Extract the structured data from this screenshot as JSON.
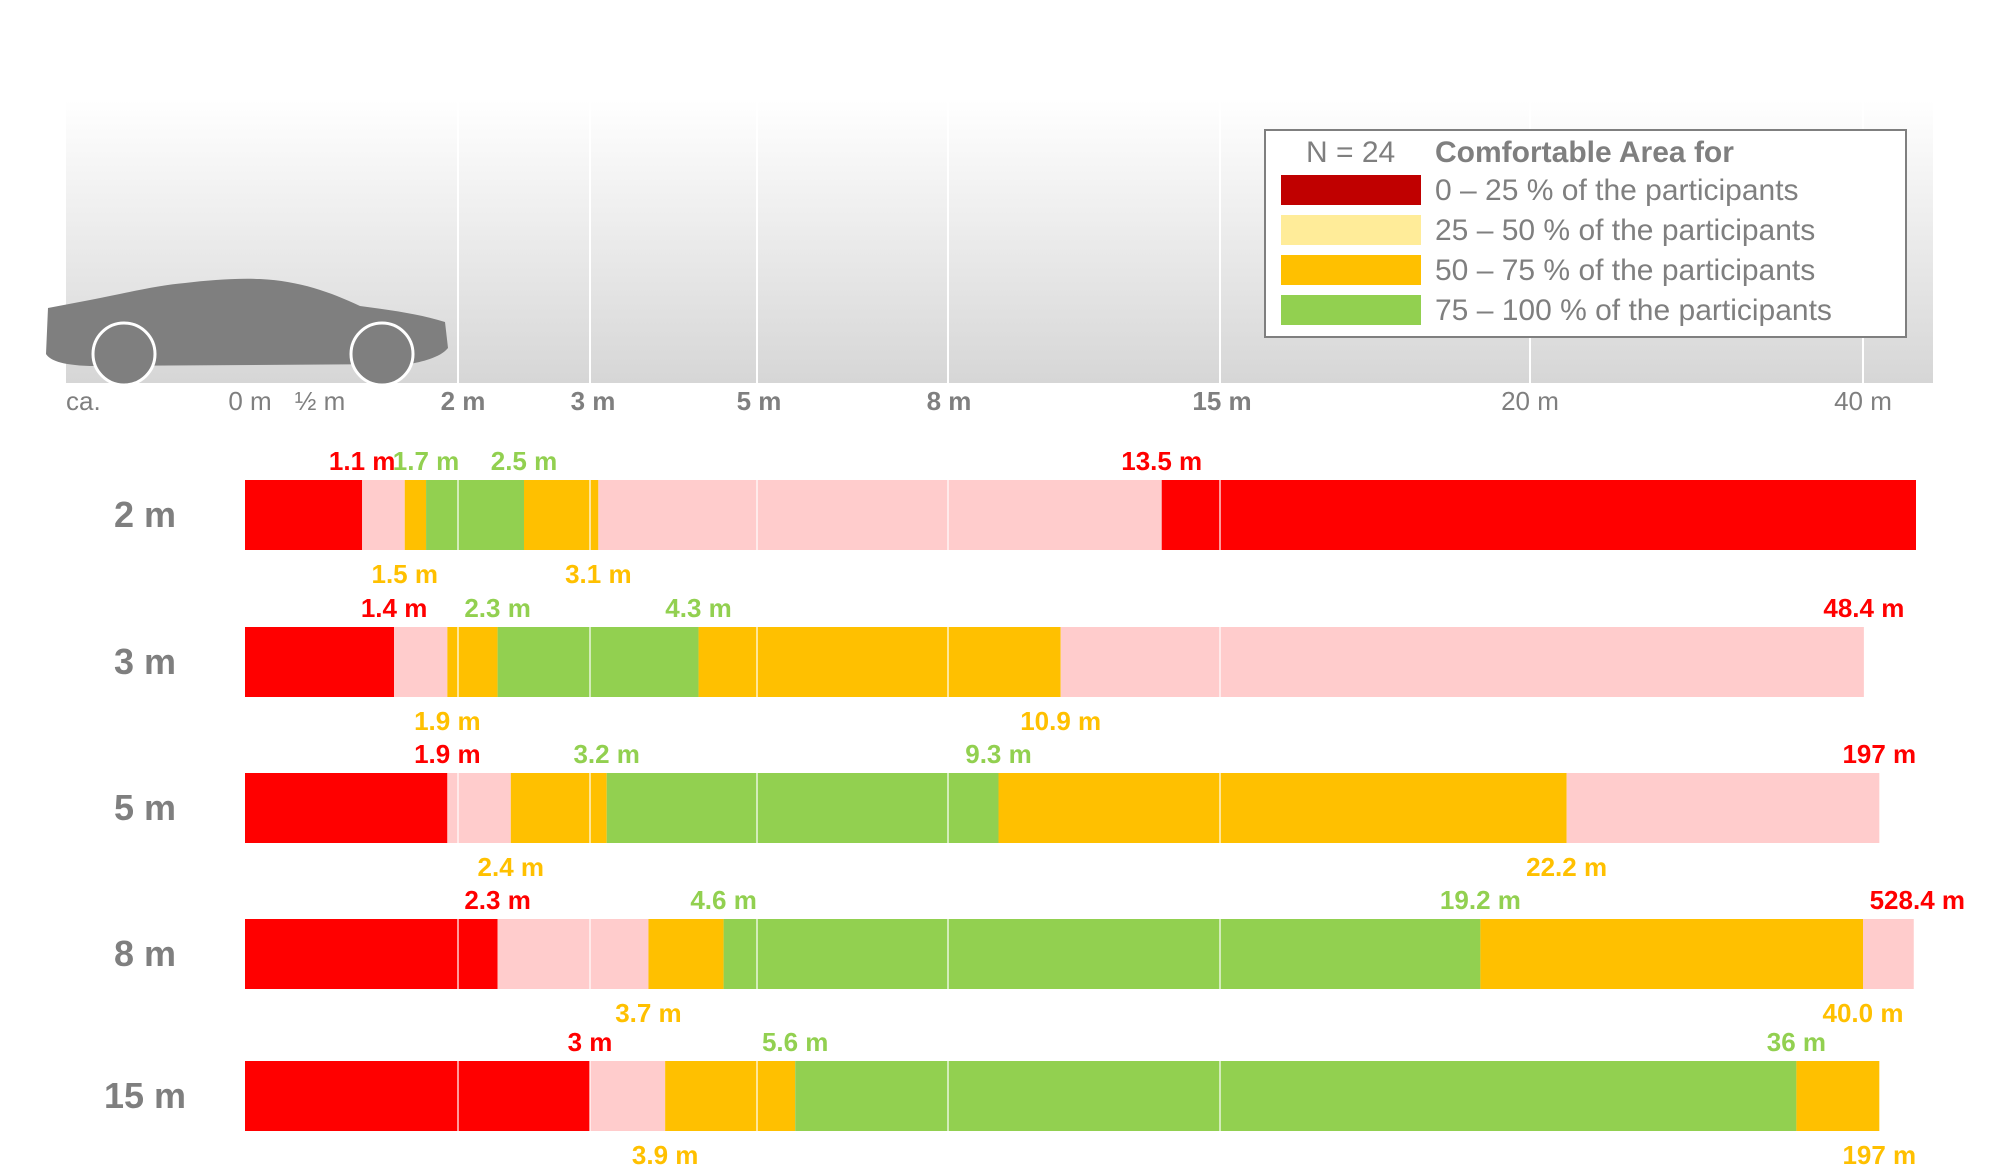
{
  "chart_data": {
    "type": "bar",
    "subtype": "stacked-horizontal-segments",
    "axis_ticks": [
      {
        "label": "ca.",
        "bold": false
      },
      {
        "label": "0 m",
        "bold": false
      },
      {
        "label": "½ m",
        "bold": false
      },
      {
        "label": "2 m",
        "bold": true
      },
      {
        "label": "3 m",
        "bold": true
      },
      {
        "label": "5 m",
        "bold": true
      },
      {
        "label": "8 m",
        "bold": true
      },
      {
        "label": "15 m",
        "bold": true
      },
      {
        "label": "20 m",
        "bold": false
      },
      {
        "label": "40 m",
        "bold": false
      }
    ],
    "legend": {
      "n_label": "N = 24",
      "title": "Comfortable Area for",
      "entries": [
        {
          "label": "0 – 25 % of the participants",
          "color": "#c00000"
        },
        {
          "label": "25 – 50 % of the participants",
          "color": "#ffec99"
        },
        {
          "label": "50 – 75 % of the participants",
          "color": "#ffc000"
        },
        {
          "label": "75 – 100 % of the participants",
          "color": "#92d050"
        }
      ]
    },
    "series_colors": {
      "red": "#ff0000",
      "pink": "#ffcccc",
      "orange": "#ffc000",
      "green": "#92d050",
      "label_red": "#ff0000",
      "label_orange": "#ffc000",
      "label_green": "#92d050"
    },
    "rows": [
      {
        "label": "2 m",
        "segments": [
          {
            "from": 0,
            "to": 1.1,
            "color": "red"
          },
          {
            "from": 1.1,
            "to": 1.5,
            "color": "pink"
          },
          {
            "from": 1.5,
            "to": 1.7,
            "color": "orange"
          },
          {
            "from": 1.7,
            "to": 2.5,
            "color": "green"
          },
          {
            "from": 2.5,
            "to": 3.1,
            "color": "orange"
          },
          {
            "from": 3.1,
            "to": 13.5,
            "color": "pink"
          },
          {
            "from": 13.5,
            "to": null,
            "color": "red"
          }
        ],
        "labels_top": [
          {
            "text": "1.1 m",
            "value": 1.1,
            "color": "label_red"
          },
          {
            "text": "1.7 m",
            "value": 1.7,
            "color": "label_green"
          },
          {
            "text": "2.5 m",
            "value": 2.5,
            "color": "label_green"
          },
          {
            "text": "13.5 m",
            "value": 13.5,
            "color": "label_red"
          }
        ],
        "labels_bottom": [
          {
            "text": "1.5 m",
            "value": 1.5,
            "color": "label_orange"
          },
          {
            "text": "3.1 m",
            "value": 3.1,
            "color": "label_orange"
          }
        ]
      },
      {
        "label": "3 m",
        "segments": [
          {
            "from": 0,
            "to": 1.4,
            "color": "red"
          },
          {
            "from": 1.4,
            "to": 1.9,
            "color": "pink"
          },
          {
            "from": 1.9,
            "to": 2.3,
            "color": "orange"
          },
          {
            "from": 2.3,
            "to": 4.3,
            "color": "green"
          },
          {
            "from": 4.3,
            "to": 10.9,
            "color": "orange"
          },
          {
            "from": 10.9,
            "to": 48.4,
            "color": "pink"
          }
        ],
        "labels_top": [
          {
            "text": "1.4 m",
            "value": 1.4,
            "color": "label_red"
          },
          {
            "text": "2.3 m",
            "value": 2.3,
            "color": "label_green"
          },
          {
            "text": "4.3 m",
            "value": 4.3,
            "color": "label_green"
          },
          {
            "text": "48.4 m",
            "value": 48.4,
            "color": "label_red"
          }
        ],
        "labels_bottom": [
          {
            "text": "1.9 m",
            "value": 1.9,
            "color": "label_orange"
          },
          {
            "text": "10.9 m",
            "value": 10.9,
            "color": "label_orange"
          }
        ]
      },
      {
        "label": "5 m",
        "segments": [
          {
            "from": 0,
            "to": 1.9,
            "color": "red"
          },
          {
            "from": 1.9,
            "to": 2.4,
            "color": "pink"
          },
          {
            "from": 2.4,
            "to": 3.2,
            "color": "orange"
          },
          {
            "from": 3.2,
            "to": 9.3,
            "color": "green"
          },
          {
            "from": 9.3,
            "to": 22.2,
            "color": "orange"
          },
          {
            "from": 22.2,
            "to": 197,
            "color": "pink"
          }
        ],
        "labels_top": [
          {
            "text": "1.9 m",
            "value": 1.9,
            "color": "label_red"
          },
          {
            "text": "3.2 m",
            "value": 3.2,
            "color": "label_green"
          },
          {
            "text": "9.3 m",
            "value": 9.3,
            "color": "label_green"
          },
          {
            "text": "197 m",
            "value": 197,
            "color": "label_red"
          }
        ],
        "labels_bottom": [
          {
            "text": "2.4 m",
            "value": 2.4,
            "color": "label_orange"
          },
          {
            "text": "22.2 m",
            "value": 22.2,
            "color": "label_orange"
          }
        ]
      },
      {
        "label": "8 m",
        "segments": [
          {
            "from": 0,
            "to": 2.3,
            "color": "red"
          },
          {
            "from": 2.3,
            "to": 3.7,
            "color": "pink"
          },
          {
            "from": 3.7,
            "to": 4.6,
            "color": "orange"
          },
          {
            "from": 4.6,
            "to": 19.2,
            "color": "green"
          },
          {
            "from": 19.2,
            "to": 40.0,
            "color": "orange"
          },
          {
            "from": 40.0,
            "to": 528.4,
            "color": "pink"
          }
        ],
        "labels_top": [
          {
            "text": "2.3 m",
            "value": 2.3,
            "color": "label_red"
          },
          {
            "text": "4.6 m",
            "value": 4.6,
            "color": "label_green"
          },
          {
            "text": "19.2 m",
            "value": 19.2,
            "color": "label_green"
          },
          {
            "text": "528.4 m",
            "value": 528.4,
            "color": "label_red"
          }
        ],
        "labels_bottom": [
          {
            "text": "3.7 m",
            "value": 3.7,
            "color": "label_orange"
          },
          {
            "text": "40.0 m",
            "value": 40.0,
            "color": "label_orange"
          }
        ]
      },
      {
        "label": "15 m",
        "segments": [
          {
            "from": 0,
            "to": 3,
            "color": "red"
          },
          {
            "from": 3,
            "to": 3.9,
            "color": "pink"
          },
          {
            "from": 3.9,
            "to": 5.6,
            "color": "orange"
          },
          {
            "from": 5.6,
            "to": 36,
            "color": "green"
          },
          {
            "from": 36,
            "to": 197,
            "color": "orange"
          }
        ],
        "labels_top": [
          {
            "text": "3 m",
            "value": 3,
            "color": "label_red"
          },
          {
            "text": "5.6 m",
            "value": 5.6,
            "color": "label_green"
          },
          {
            "text": "36 m",
            "value": 36,
            "color": "label_green"
          }
        ],
        "labels_bottom": [
          {
            "text": "3.9 m",
            "value": 3.9,
            "color": "label_orange"
          },
          {
            "text": "197 m",
            "value": 197,
            "color": "label_orange"
          }
        ]
      }
    ]
  }
}
